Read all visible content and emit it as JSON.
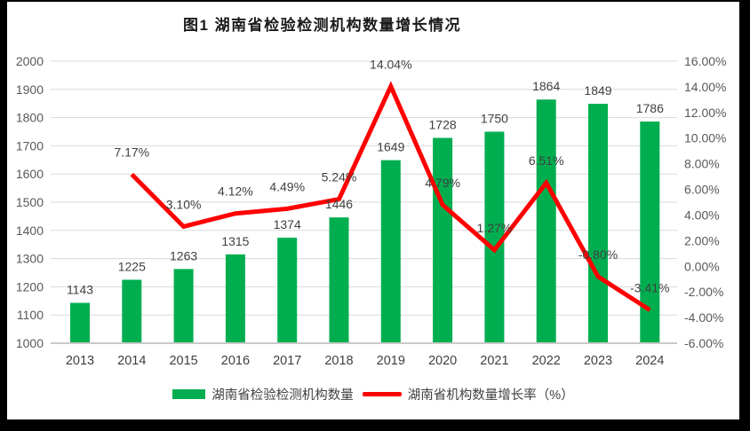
{
  "chart_data": {
    "type": "combo",
    "title": "图1 湖南省检验检测机构数量增长情况",
    "categories": [
      "2013",
      "2014",
      "2015",
      "2016",
      "2017",
      "2018",
      "2019",
      "2020",
      "2021",
      "2022",
      "2023",
      "2024"
    ],
    "series": [
      {
        "name": "湖南省检验检测机构数量",
        "type": "bar",
        "color": "#00AE50",
        "values": [
          1143,
          1225,
          1263,
          1315,
          1374,
          1446,
          1649,
          1728,
          1750,
          1864,
          1849,
          1786
        ]
      },
      {
        "name": "湖南省机构数量增长率（%）",
        "type": "line",
        "color": "#FF0000",
        "values": [
          null,
          7.17,
          3.1,
          4.12,
          4.49,
          5.24,
          14.04,
          4.79,
          1.27,
          6.51,
          -0.8,
          -3.41
        ],
        "labels": [
          "",
          "7.17%",
          "3.10%",
          "4.12%",
          "4.49%",
          "5.24%",
          "14.04%",
          "4.79%",
          "1.27%",
          "6.51%",
          "-0.80%",
          "-3.41%"
        ]
      }
    ],
    "y_left": {
      "min": 1000,
      "max": 2000,
      "step": 100,
      "ticks": [
        "1000",
        "1100",
        "1200",
        "1300",
        "1400",
        "1500",
        "1600",
        "1700",
        "1800",
        "1900",
        "2000"
      ]
    },
    "y_right": {
      "min": -6,
      "max": 16,
      "step": 2,
      "ticks": [
        "-6.00%",
        "-4.00%",
        "-2.00%",
        "0.00%",
        "2.00%",
        "4.00%",
        "6.00%",
        "8.00%",
        "10.00%",
        "12.00%",
        "14.00%",
        "16.00%"
      ]
    },
    "grid": "horizontal",
    "legend_position": "bottom",
    "colors": {
      "gridline": "#D9D9D9",
      "axis_line": "#C9C9C9"
    }
  }
}
